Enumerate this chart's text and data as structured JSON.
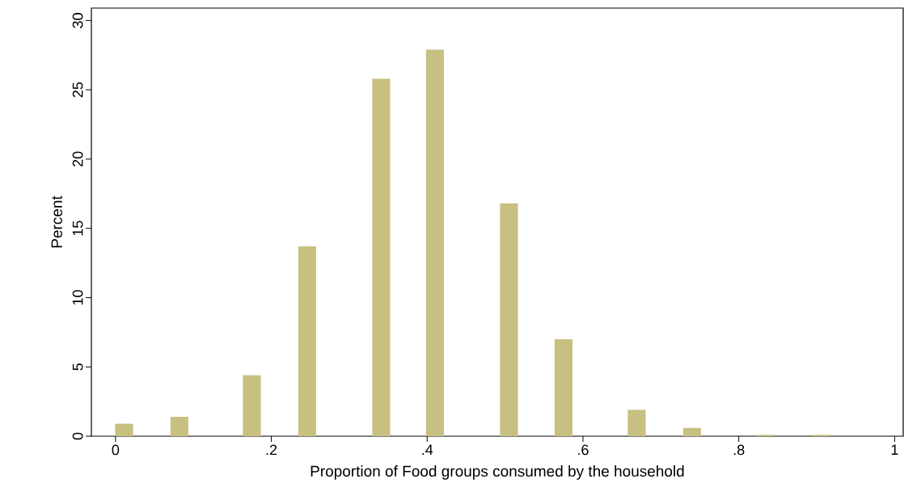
{
  "chart_data": {
    "type": "bar",
    "xlabel": "Proportion of Food groups consumed by the household",
    "ylabel": "Percent",
    "x": [
      0.011,
      0.082,
      0.175,
      0.246,
      0.341,
      0.41,
      0.505,
      0.575,
      0.669,
      0.74,
      0.834,
      0.905
    ],
    "values": [
      0.9,
      1.4,
      4.4,
      13.7,
      25.8,
      27.9,
      16.8,
      7.0,
      1.9,
      0.6,
      0.1,
      0.1
    ],
    "color": "#c8c080",
    "xlim": [
      -0.031,
      1.011
    ],
    "ylim": [
      0,
      30.9
    ],
    "xticks": [
      {
        "value": 0,
        "label": "0"
      },
      {
        "value": 0.2,
        "label": ".2"
      },
      {
        "value": 0.4,
        "label": ".4"
      },
      {
        "value": 0.6,
        "label": ".6"
      },
      {
        "value": 0.8,
        "label": ".8"
      },
      {
        "value": 1,
        "label": "1"
      }
    ],
    "yticks": [
      0,
      5,
      10,
      15,
      20,
      25,
      30
    ]
  }
}
